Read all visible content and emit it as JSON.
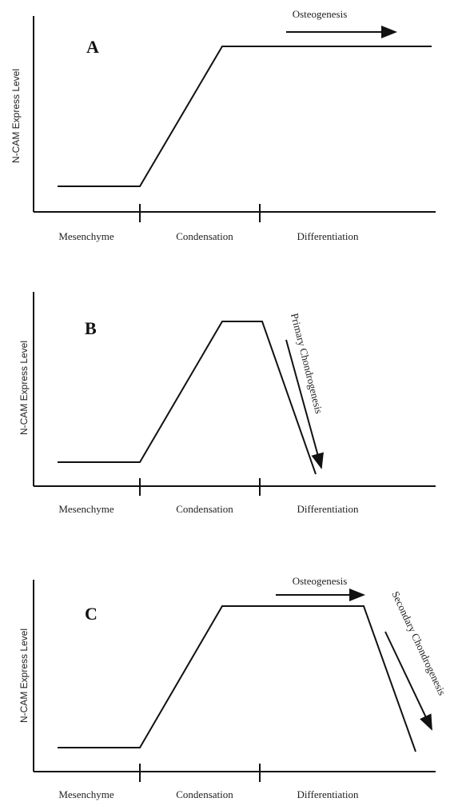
{
  "panels": [
    {
      "label": "A",
      "y_label": "N-CAM Express Level",
      "stages": [
        "Mesenchyme",
        "Condensation",
        "Differentiation"
      ],
      "annotations": [
        "Osteogenesis"
      ]
    },
    {
      "label": "B",
      "y_label": "N-CAM Express Level",
      "stages": [
        "Mesenchyme",
        "Condensation",
        "Differentiation"
      ],
      "annotations": [
        "Primary Chondrogenesis"
      ]
    },
    {
      "label": "C",
      "y_label": "N-CAM Express Level",
      "stages": [
        "Mesenchyme",
        "Condensation",
        "Differentiation"
      ],
      "annotations": [
        "Osteogenesis",
        "Secondary Chondrogenesis"
      ]
    }
  ]
}
